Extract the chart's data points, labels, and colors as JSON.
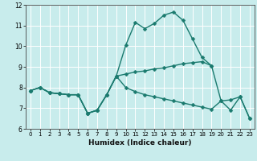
{
  "xlabel": "Humidex (Indice chaleur)",
  "bg_color": "#c8ecec",
  "grid_color": "#ffffff",
  "line_color": "#1a7a6e",
  "xlim": [
    -0.5,
    23.5
  ],
  "ylim": [
    6.0,
    12.0
  ],
  "yticks": [
    6,
    7,
    8,
    9,
    10,
    11,
    12
  ],
  "xticks": [
    0,
    1,
    2,
    3,
    4,
    5,
    6,
    7,
    8,
    9,
    10,
    11,
    12,
    13,
    14,
    15,
    16,
    17,
    18,
    19,
    20,
    21,
    22,
    23
  ],
  "line1_x": [
    0,
    1,
    2,
    3,
    4,
    5,
    6,
    7,
    8,
    9,
    10,
    11,
    12,
    13,
    14,
    15,
    16,
    17,
    18,
    19
  ],
  "line1_y": [
    7.85,
    8.0,
    7.75,
    7.7,
    7.65,
    7.65,
    6.75,
    6.9,
    7.65,
    8.55,
    10.05,
    11.15,
    10.85,
    11.1,
    11.5,
    11.65,
    11.25,
    10.35,
    9.45,
    9.05
  ],
  "line2_x": [
    0,
    1,
    2,
    3,
    4,
    5,
    6,
    7,
    8,
    9,
    10,
    11,
    12,
    13,
    14,
    15,
    16,
    17,
    18,
    19,
    20,
    21,
    22,
    23
  ],
  "line2_y": [
    7.85,
    8.0,
    7.75,
    7.7,
    7.65,
    7.65,
    6.75,
    6.9,
    7.65,
    8.55,
    8.65,
    8.75,
    8.8,
    8.9,
    8.95,
    9.05,
    9.15,
    9.2,
    9.25,
    9.05,
    7.35,
    7.4,
    7.55,
    6.5
  ],
  "line3_x": [
    0,
    1,
    2,
    3,
    4,
    5,
    6,
    7,
    8,
    9,
    10,
    11,
    12,
    13,
    14,
    15,
    16,
    17,
    18,
    19,
    20,
    21,
    22,
    23
  ],
  "line3_y": [
    7.85,
    8.0,
    7.75,
    7.7,
    7.65,
    7.65,
    6.75,
    6.9,
    7.65,
    8.55,
    8.0,
    7.8,
    7.65,
    7.55,
    7.45,
    7.35,
    7.25,
    7.15,
    7.05,
    6.95,
    7.35,
    6.9,
    7.55,
    6.5
  ],
  "markersize": 2.5,
  "linewidth": 1.0
}
